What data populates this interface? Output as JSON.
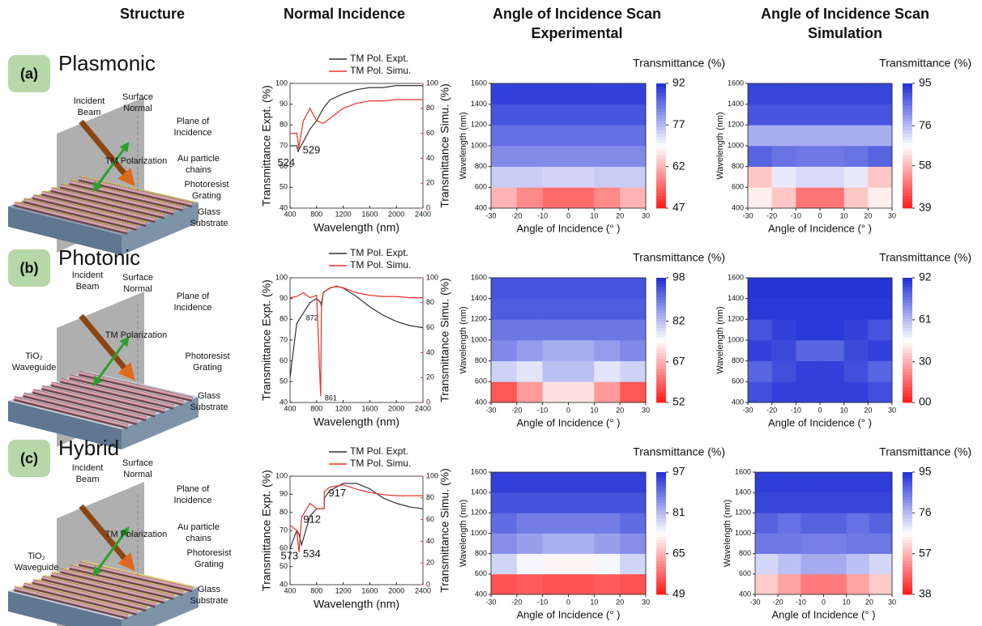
{
  "headers": [
    [
      "Structure"
    ],
    [
      "Normal Incidence"
    ],
    [
      "Angle of Incidence Scan",
      "Experimental"
    ],
    [
      "Angle of Incidence Scan",
      "Simulation"
    ]
  ],
  "structures": [
    {
      "label": "(a)",
      "name": "Plasmonic",
      "name_color": "#111111",
      "callouts": [
        [
          "Incident",
          "Beam"
        ],
        [
          "Surface",
          "Normal"
        ],
        [
          "Plane of",
          "Incidence"
        ],
        [
          "TM Polarization"
        ],
        [
          "Au particle",
          "chains"
        ],
        [
          "Photoresist",
          "Grating"
        ],
        [
          "Glass",
          "Substrate"
        ]
      ]
    },
    {
      "label": "(b)",
      "name": "Photonic",
      "name_color": "#e53935",
      "callouts": [
        [
          "Incident",
          "Beam"
        ],
        [
          "Surface",
          "Normal"
        ],
        [
          "Plane of",
          "Incidence"
        ],
        [
          "TM Polarization"
        ],
        [
          "TiO₂",
          "Waveguide"
        ],
        [
          "Photoresist",
          "Grating"
        ],
        [
          "Glass",
          "Substrate"
        ]
      ]
    },
    {
      "label": "(c)",
      "name": "Hybrid",
      "name_color": "#1a33d6",
      "callouts": [
        [
          "Incident",
          "Beam"
        ],
        [
          "Surface",
          "Normal"
        ],
        [
          "Plane of",
          "Incidence"
        ],
        [
          "TM Polarization"
        ],
        [
          "Au particle",
          "chains"
        ],
        [
          "TiO₂",
          "Waveguide"
        ],
        [
          "Photoresist",
          "Grating"
        ],
        [
          "Glass",
          "Substrate"
        ]
      ]
    }
  ],
  "chart_data": [
    {
      "type": "line",
      "x": [
        400,
        500,
        524,
        529,
        600,
        700,
        800,
        900,
        1000,
        1200,
        1400,
        1600,
        1800,
        2000,
        2200,
        2400
      ],
      "series": [
        {
          "name": "TM Pol.  Expt.",
          "color": "#333333",
          "values": [
            70,
            70,
            67,
            68,
            72,
            78,
            82,
            88,
            92,
            95,
            97,
            98,
            98,
            99,
            99,
            99
          ],
          "annotations": [
            524
          ]
        },
        {
          "name": "TM Pol.  Simu.",
          "color": "#e8302a",
          "axis": "y2",
          "values": [
            60,
            60,
            52,
            48,
            70,
            80,
            70,
            68,
            72,
            80,
            84,
            86,
            86,
            87,
            87,
            87
          ],
          "annotations": [
            529
          ]
        }
      ],
      "xlim": [
        400,
        2400
      ],
      "xticks": [
        400,
        800,
        1200,
        1600,
        2000,
        2400
      ],
      "ylim": [
        40,
        100
      ],
      "yticks": [
        40,
        50,
        60,
        70,
        80,
        90,
        100
      ],
      "y2lim": [
        0,
        100
      ],
      "y2ticks": [
        0,
        20,
        40,
        60,
        80,
        100
      ],
      "xlabel": "Wavelength (nm)",
      "ylabel": "Transmittance  Expt. (%)",
      "y2label": "Transmittance  Simu. (%)"
    },
    {
      "type": "heatmap",
      "title": "Transmittance (%)",
      "x": [
        -25,
        -15,
        -5,
        5,
        15,
        25
      ],
      "y": [
        500,
        700,
        900,
        1100,
        1300,
        1500
      ],
      "z": [
        [
          62,
          58,
          55,
          55,
          58,
          62
        ],
        [
          75,
          75,
          74,
          74,
          75,
          75
        ],
        [
          82,
          82,
          82,
          82,
          82,
          82
        ],
        [
          85,
          85,
          85,
          85,
          85,
          85
        ],
        [
          88,
          88,
          88,
          88,
          88,
          88
        ],
        [
          90,
          90,
          90,
          90,
          90,
          90
        ]
      ],
      "xlim": [
        -30,
        30
      ],
      "xticks": [
        -30,
        -20,
        -10,
        0,
        10,
        20,
        30
      ],
      "ylim": [
        400,
        1600
      ],
      "yticks": [
        400,
        600,
        800,
        1000,
        1200,
        1400,
        1600
      ],
      "zlim": [
        47,
        92
      ],
      "zticks": [
        47,
        62,
        77,
        92
      ],
      "colors": [
        "#ff1a1a",
        "#ffffff",
        "#1f2fd6"
      ],
      "xlabel": "Angle of Incidence (° )",
      "ylabel": "Wavelength (nm)"
    },
    {
      "type": "heatmap",
      "title": "Transmittance (%)",
      "x": [
        -25,
        -15,
        -5,
        5,
        15,
        25
      ],
      "y": [
        500,
        700,
        900,
        1100,
        1300,
        1500
      ],
      "z": [
        [
          65,
          60,
          50,
          50,
          60,
          65
        ],
        [
          60,
          70,
          72,
          72,
          70,
          60
        ],
        [
          88,
          86,
          85,
          85,
          86,
          88
        ],
        [
          78,
          78,
          78,
          78,
          78,
          78
        ],
        [
          90,
          90,
          90,
          90,
          90,
          90
        ],
        [
          92,
          92,
          92,
          92,
          92,
          92
        ]
      ],
      "xlim": [
        -30,
        30
      ],
      "xticks": [
        -30,
        -20,
        -10,
        0,
        10,
        20,
        30
      ],
      "ylim": [
        400,
        1600
      ],
      "yticks": [
        400,
        600,
        800,
        1000,
        1200,
        1400,
        1600
      ],
      "zlim": [
        39,
        95
      ],
      "zticks": [
        39,
        58,
        76,
        95
      ],
      "colors": [
        "#ff1a1a",
        "#ffffff",
        "#1f2fd6"
      ],
      "xlabel": "Angle of Incidence (° )",
      "ylabel": "Wavelength (nm)"
    },
    {
      "type": "line",
      "x": [
        400,
        500,
        600,
        700,
        800,
        861,
        872,
        900,
        1000,
        1100,
        1200,
        1400,
        1600,
        1800,
        2000,
        2200,
        2400
      ],
      "series": [
        {
          "name": "TM Pol.  Expt.",
          "color": "#333333",
          "values": [
            52,
            78,
            83,
            88,
            90,
            88,
            86,
            93,
            95,
            96,
            95,
            91,
            86,
            82,
            79,
            77,
            76
          ],
          "annotations": [
            872
          ]
        },
        {
          "name": "TM Pol.  Simu.",
          "color": "#e8302a",
          "axis": "y2",
          "values": [
            84,
            85,
            88,
            84,
            86,
            5,
            80,
            88,
            92,
            93,
            92,
            88,
            86,
            85,
            85,
            84,
            84
          ],
          "annotations": [
            861
          ]
        }
      ],
      "xlim": [
        400,
        2400
      ],
      "xticks": [
        400,
        800,
        1200,
        1600,
        2000,
        2400
      ],
      "ylim": [
        40,
        100
      ],
      "yticks": [
        40,
        50,
        60,
        70,
        80,
        90,
        100
      ],
      "y2lim": [
        0,
        100
      ],
      "y2ticks": [
        0,
        20,
        40,
        60,
        80,
        100
      ],
      "xlabel": "Wavelength (nm)",
      "ylabel": "Transmittance  Expt. (%)",
      "y2label": "Transmittance  Simu. (%)"
    },
    {
      "type": "heatmap",
      "title": "Transmittance (%)",
      "x": [
        -25,
        -15,
        -5,
        5,
        15,
        25
      ],
      "y": [
        500,
        700,
        900,
        1100,
        1300,
        1500
      ],
      "z": [
        [
          58,
          65,
          72,
          72,
          65,
          58
        ],
        [
          80,
          78,
          82,
          82,
          78,
          80
        ],
        [
          88,
          86,
          84,
          84,
          86,
          88
        ],
        [
          90,
          90,
          90,
          90,
          90,
          90
        ],
        [
          93,
          93,
          93,
          93,
          93,
          93
        ],
        [
          94,
          94,
          94,
          94,
          94,
          94
        ]
      ],
      "xlim": [
        -30,
        30
      ],
      "xticks": [
        -30,
        -20,
        -10,
        0,
        10,
        20,
        30
      ],
      "ylim": [
        400,
        1600
      ],
      "yticks": [
        400,
        600,
        800,
        1000,
        1200,
        1400,
        1600
      ],
      "zlim": [
        52,
        98
      ],
      "zticks": [
        52,
        67,
        82,
        98
      ],
      "colors": [
        "#ff1a1a",
        "#ffffff",
        "#1f2fd6"
      ],
      "xlabel": "Angle of Incidence (° )",
      "ylabel": "Wavelength (nm)"
    },
    {
      "type": "heatmap",
      "title": "Transmittance (%)",
      "x": [
        -25,
        -15,
        -5,
        5,
        15,
        25
      ],
      "y": [
        500,
        700,
        900,
        1100,
        1300,
        1500
      ],
      "z": [
        [
          85,
          88,
          88,
          88,
          88,
          85
        ],
        [
          80,
          85,
          88,
          88,
          85,
          80
        ],
        [
          88,
          86,
          80,
          80,
          86,
          88
        ],
        [
          84,
          88,
          90,
          90,
          88,
          84
        ],
        [
          90,
          90,
          90,
          90,
          90,
          90
        ],
        [
          91,
          91,
          91,
          91,
          91,
          91
        ]
      ],
      "xlim": [
        -30,
        30
      ],
      "xticks": [
        -30,
        -20,
        -10,
        0,
        10,
        20,
        30
      ],
      "ylim": [
        400,
        1600
      ],
      "yticks": [
        400,
        600,
        800,
        1000,
        1200,
        1400,
        1600
      ],
      "zlim": [
        0,
        92
      ],
      "zticks": [
        {
          "value": 0,
          "label": "00"
        },
        30,
        61,
        92
      ],
      "colors": [
        "#ff1a1a",
        "#ffffff",
        "#1f2fd6"
      ],
      "xlabel": "Angle of Incidence (° )",
      "ylabel": "Wavelength (nm)"
    },
    {
      "type": "line",
      "x": [
        400,
        500,
        534,
        573,
        700,
        800,
        912,
        917,
        1000,
        1200,
        1400,
        1600,
        1800,
        2000,
        2200,
        2400
      ],
      "series": [
        {
          "name": "TM Pol.  Expt.",
          "color": "#333333",
          "values": [
            60,
            70,
            68,
            62,
            78,
            82,
            82,
            88,
            92,
            96,
            96,
            93,
            88,
            85,
            83,
            82
          ],
          "annotations": [
            573,
            912
          ]
        },
        {
          "name": "TM Pol.  Simu.",
          "color": "#e8302a",
          "axis": "y2",
          "values": [
            55,
            50,
            30,
            62,
            75,
            70,
            70,
            86,
            90,
            92,
            88,
            85,
            83,
            82,
            82,
            82
          ],
          "annotations": [
            534,
            917
          ]
        }
      ],
      "xlim": [
        400,
        2400
      ],
      "xticks": [
        400,
        800,
        1200,
        1600,
        2000,
        2400
      ],
      "ylim": [
        40,
        100
      ],
      "yticks": [
        40,
        50,
        60,
        70,
        80,
        90,
        100
      ],
      "y2lim": [
        0,
        100
      ],
      "y2ticks": [
        0,
        20,
        40,
        60,
        80,
        100
      ],
      "xlabel": "Wavelength (nm)",
      "ylabel": "Transmittance  Expt. (%)",
      "y2label": "Transmittance  Simu. (%)"
    },
    {
      "type": "heatmap",
      "title": "Transmittance (%)",
      "x": [
        -25,
        -15,
        -5,
        5,
        15,
        25
      ],
      "y": [
        500,
        700,
        900,
        1100,
        1300,
        1500
      ],
      "z": [
        [
          55,
          56,
          55,
          55,
          56,
          55
        ],
        [
          78,
          74,
          72,
          72,
          74,
          78
        ],
        [
          86,
          84,
          82,
          82,
          84,
          86
        ],
        [
          90,
          88,
          88,
          88,
          88,
          90
        ],
        [
          93,
          93,
          93,
          93,
          93,
          93
        ],
        [
          95,
          95,
          95,
          95,
          95,
          95
        ]
      ],
      "xlim": [
        -30,
        30
      ],
      "xticks": [
        -30,
        -20,
        -10,
        0,
        10,
        20,
        30
      ],
      "ylim": [
        400,
        1600
      ],
      "yticks": [
        400,
        600,
        800,
        1000,
        1200,
        1400,
        1600
      ],
      "zlim": [
        49,
        97
      ],
      "zticks": [
        49,
        65,
        81,
        97
      ],
      "colors": [
        "#ff1a1a",
        "#ffffff",
        "#1f2fd6"
      ],
      "xlabel": "Angle of Incidence (° )",
      "ylabel": "Wavelength (nm)"
    },
    {
      "type": "heatmap",
      "title": "Transmittance (%)",
      "x": [
        -25,
        -15,
        -5,
        5,
        15,
        25
      ],
      "y": [
        500,
        700,
        900,
        1100,
        1300,
        1500
      ],
      "z": [
        [
          60,
          55,
          50,
          50,
          55,
          60
        ],
        [
          72,
          75,
          78,
          78,
          75,
          72
        ],
        [
          85,
          85,
          84,
          84,
          85,
          85
        ],
        [
          88,
          86,
          88,
          88,
          86,
          88
        ],
        [
          92,
          92,
          92,
          92,
          92,
          92
        ],
        [
          93,
          93,
          93,
          93,
          93,
          93
        ]
      ],
      "xlim": [
        -30,
        30
      ],
      "xticks": [
        -30,
        -20,
        -10,
        0,
        10,
        20,
        30
      ],
      "ylim": [
        400,
        1600
      ],
      "yticks": [
        400,
        600,
        800,
        1000,
        1200,
        1400,
        1600
      ],
      "zlim": [
        38,
        95
      ],
      "zticks": [
        38,
        57,
        76,
        95
      ],
      "colors": [
        "#ff1a1a",
        "#ffffff",
        "#1f2fd6"
      ],
      "xlabel": "Angle of Incidence (° )",
      "ylabel": "Wavelength (nm)"
    }
  ]
}
